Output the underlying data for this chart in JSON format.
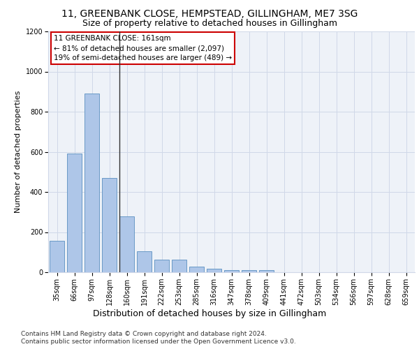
{
  "title1": "11, GREENBANK CLOSE, HEMPSTEAD, GILLINGHAM, ME7 3SG",
  "title2": "Size of property relative to detached houses in Gillingham",
  "xlabel": "Distribution of detached houses by size in Gillingham",
  "ylabel": "Number of detached properties",
  "categories": [
    "35sqm",
    "66sqm",
    "97sqm",
    "128sqm",
    "160sqm",
    "191sqm",
    "222sqm",
    "253sqm",
    "285sqm",
    "316sqm",
    "347sqm",
    "378sqm",
    "409sqm",
    "441sqm",
    "472sqm",
    "503sqm",
    "534sqm",
    "566sqm",
    "597sqm",
    "628sqm",
    "659sqm"
  ],
  "values": [
    155,
    590,
    890,
    470,
    280,
    105,
    62,
    62,
    28,
    18,
    12,
    10,
    10,
    0,
    0,
    0,
    0,
    0,
    0,
    0,
    0
  ],
  "bar_color": "#aec6e8",
  "bar_edge_color": "#5a8fc0",
  "highlight_line_color": "#333333",
  "annotation_title": "11 GREENBANK CLOSE: 161sqm",
  "annotation_line1": "← 81% of detached houses are smaller (2,097)",
  "annotation_line2": "19% of semi-detached houses are larger (489) →",
  "annotation_box_color": "#ffffff",
  "annotation_box_edge": "#cc0000",
  "ylim": [
    0,
    1200
  ],
  "yticks": [
    0,
    200,
    400,
    600,
    800,
    1000,
    1200
  ],
  "footer1": "Contains HM Land Registry data © Crown copyright and database right 2024.",
  "footer2": "Contains public sector information licensed under the Open Government Licence v3.0.",
  "bg_color": "#eef2f8",
  "grid_color": "#d0d8e8",
  "title1_fontsize": 10,
  "title2_fontsize": 9,
  "xlabel_fontsize": 9,
  "ylabel_fontsize": 8,
  "tick_fontsize": 7,
  "footer_fontsize": 6.5
}
